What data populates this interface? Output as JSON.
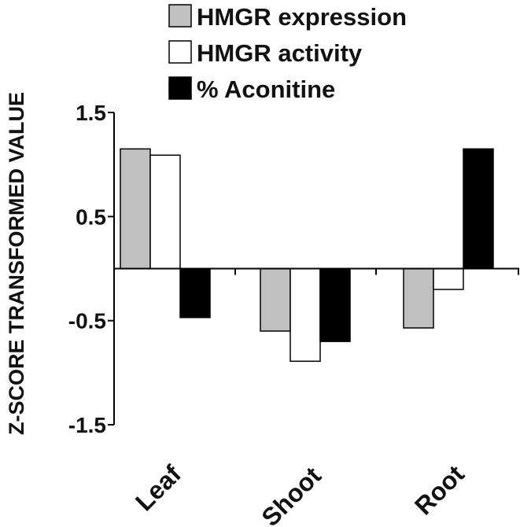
{
  "chart_data": {
    "type": "bar",
    "title": "",
    "xlabel": "",
    "ylabel": "Z-SCORE TRANSFORMED VALUE",
    "ylim": [
      -1.5,
      1.5
    ],
    "yticks": [
      1.5,
      0.5,
      -0.5,
      -1.5
    ],
    "ytick_labels": [
      "1.5",
      "0.5",
      "-0.5",
      "-1.5"
    ],
    "categories": [
      "Leaf",
      "Shoot",
      "Root"
    ],
    "series": [
      {
        "name": "HMGR expression",
        "color": "#c0c0c0",
        "values": [
          1.15,
          -0.6,
          -0.57
        ]
      },
      {
        "name": "HMGR activity",
        "color": "#ffffff",
        "values": [
          1.09,
          -0.89,
          -0.2
        ]
      },
      {
        "name": "% Aconitine",
        "color": "#000000",
        "values": [
          -0.47,
          -0.7,
          1.15
        ]
      }
    ],
    "legend_position": "top",
    "grid": false
  }
}
